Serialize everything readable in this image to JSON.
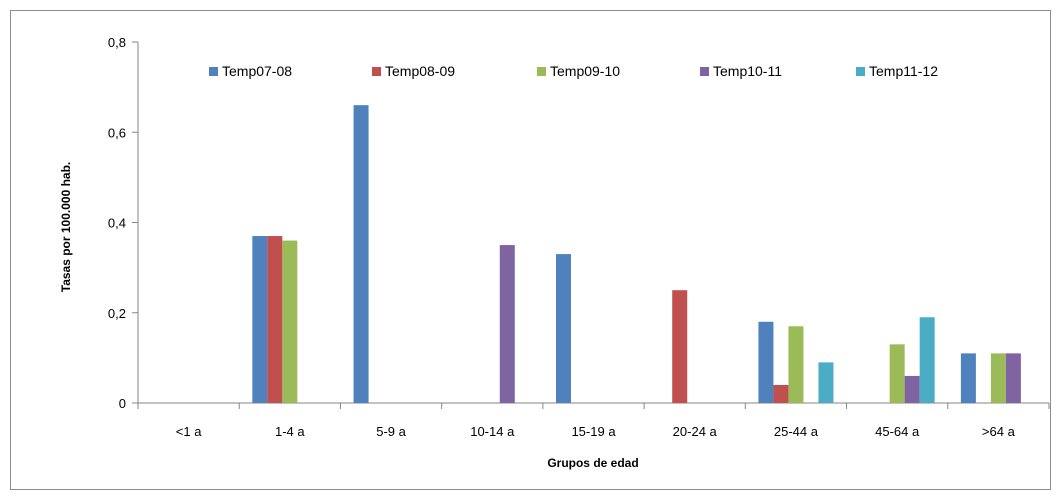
{
  "chart_data": {
    "type": "bar",
    "title": "",
    "xlabel": "Grupos de edad",
    "ylabel": "Tasas por 100.000 hab.",
    "ylim": [
      0,
      0.8
    ],
    "yticks": [
      0,
      0.2,
      0.4,
      0.6,
      0.8
    ],
    "ytick_labels": [
      "0",
      "0,2",
      "0,4",
      "0,6",
      "0,8"
    ],
    "grid": false,
    "legend_position": "top",
    "categories": [
      "<1 a",
      "1-4 a",
      "5-9 a",
      "10-14 a",
      "15-19 a",
      "20-24 a",
      "25-44 a",
      "45-64 a",
      ">64 a"
    ],
    "series": [
      {
        "name": "Temp07-08",
        "color": "#4F81BD",
        "values": [
          0,
          0.37,
          0.66,
          0,
          0.33,
          0,
          0.18,
          0,
          0.11
        ]
      },
      {
        "name": "Temp08-09",
        "color": "#C0504D",
        "values": [
          0,
          0.37,
          0,
          0,
          0,
          0.25,
          0.04,
          0,
          0
        ]
      },
      {
        "name": "Temp09-10",
        "color": "#9BBB59",
        "values": [
          0,
          0.36,
          0,
          0,
          0,
          0,
          0.17,
          0.13,
          0.11
        ]
      },
      {
        "name": "Temp10-11",
        "color": "#8064A2",
        "values": [
          0,
          0,
          0,
          0.35,
          0,
          0,
          0,
          0.06,
          0.11
        ]
      },
      {
        "name": "Temp11-12",
        "color": "#4BACC6",
        "values": [
          0,
          0,
          0,
          0,
          0,
          0,
          0.09,
          0.19,
          0
        ]
      }
    ]
  }
}
